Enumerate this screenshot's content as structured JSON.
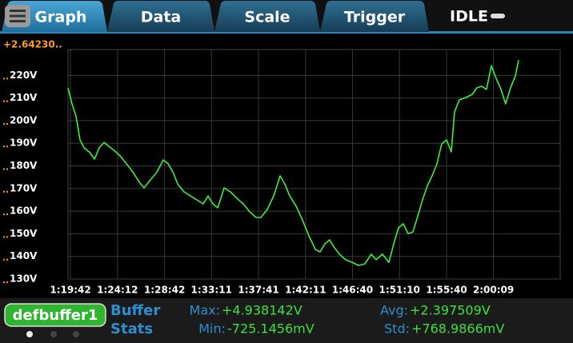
{
  "tabs": [
    "Graph",
    "Data",
    "Scale",
    "Trigger"
  ],
  "status": "IDLE",
  "chart_data": {
    "type": "line",
    "top_label": "+2.64230..",
    "color": "#3cf03c",
    "grid": true,
    "xlim": [
      4768,
      7592
    ],
    "ylim": [
      130,
      230
    ],
    "xticks": [
      {
        "value": 4782,
        "label": "1:19:42"
      },
      {
        "value": 5052,
        "label": "1:24:12"
      },
      {
        "value": 5322,
        "label": "1:28:42"
      },
      {
        "value": 5591,
        "label": "1:33:11"
      },
      {
        "value": 5861,
        "label": "1:37:41"
      },
      {
        "value": 6131,
        "label": "1:42:11"
      },
      {
        "value": 6400,
        "label": "1:46:40"
      },
      {
        "value": 6670,
        "label": "1:51:10"
      },
      {
        "value": 6940,
        "label": "1:55:40"
      },
      {
        "value": 7209,
        "label": "2:00:09"
      }
    ],
    "yticks": [
      {
        "value": 130,
        "label": "130V"
      },
      {
        "value": 140,
        "label": "140V"
      },
      {
        "value": 150,
        "label": "150V"
      },
      {
        "value": 160,
        "label": "160V"
      },
      {
        "value": 170,
        "label": "170V"
      },
      {
        "value": 180,
        "label": "180V"
      },
      {
        "value": 190,
        "label": "190V"
      },
      {
        "value": 200,
        "label": "200V"
      },
      {
        "value": 210,
        "label": "210V"
      },
      {
        "value": 220,
        "label": "220V"
      }
    ],
    "x": [
      4768,
      4791,
      4814,
      4837,
      4860,
      4892,
      4920,
      4947,
      4975,
      5002,
      5030,
      5067,
      5103,
      5140,
      5177,
      5204,
      5241,
      5278,
      5314,
      5342,
      5370,
      5397,
      5434,
      5471,
      5507,
      5544,
      5572,
      5599,
      5627,
      5664,
      5700,
      5737,
      5774,
      5810,
      5847,
      5875,
      5911,
      5948,
      5985,
      6012,
      6040,
      6077,
      6113,
      6150,
      6187,
      6214,
      6242,
      6269,
      6297,
      6325,
      6361,
      6398,
      6435,
      6471,
      6508,
      6536,
      6572,
      6609,
      6637,
      6664,
      6692,
      6719,
      6747,
      6775,
      6802,
      6830,
      6857,
      6885,
      6912,
      6940,
      6967,
      6986,
      7013,
      7050,
      7087,
      7114,
      7142,
      7169,
      7197,
      7224,
      7252,
      7279,
      7307,
      7335,
      7353
    ],
    "values": [
      214.5,
      207.4,
      202,
      191.5,
      188,
      186,
      183,
      188,
      190.4,
      188.7,
      187,
      184.4,
      181,
      177.3,
      172.8,
      170.3,
      173.8,
      177.3,
      182.6,
      181,
      177.3,
      172,
      168.5,
      166.7,
      165,
      163.2,
      166.7,
      163.2,
      161.5,
      170.3,
      168.5,
      165.7,
      163.2,
      159.7,
      157.2,
      157.2,
      160.7,
      166.7,
      175.6,
      172,
      166.7,
      162.2,
      156.1,
      149.1,
      143.1,
      142,
      145.5,
      147.3,
      143.8,
      141,
      138.5,
      137.4,
      136,
      136.7,
      141,
      138.5,
      141,
      137.4,
      145.5,
      152.6,
      154.4,
      150.1,
      150.8,
      157.9,
      165,
      171.3,
      175.6,
      180.9,
      189.7,
      191.5,
      186.2,
      203.9,
      209.2,
      210.2,
      211.6,
      214.5,
      215.2,
      213.8,
      224.3,
      218.7,
      213.8,
      207.4,
      214.5,
      219.8,
      226.8
    ]
  },
  "buffer": {
    "name": "defbuffer1",
    "title": [
      "Buffer",
      "Stats"
    ],
    "stats": [
      {
        "label": "Max:",
        "value": "+4.938142V"
      },
      {
        "label": "Min:",
        "value": "-725.1456mV"
      },
      {
        "label": "Avg:",
        "value": "+2.397509V"
      },
      {
        "label": "Std:",
        "value": "+768.9866mV"
      }
    ]
  }
}
